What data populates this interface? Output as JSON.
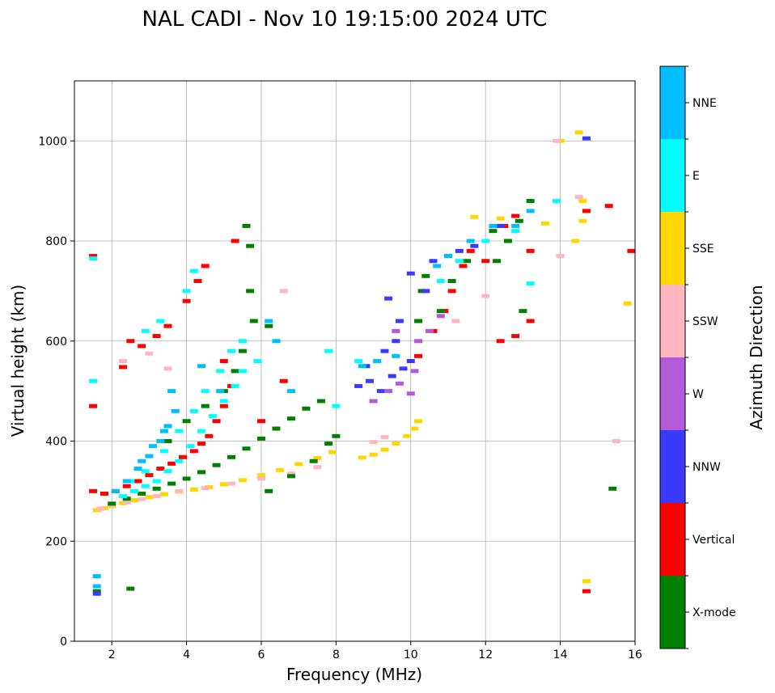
{
  "chart_data": {
    "type": "scatter",
    "title": "NAL CADI - Nov 10 19:15:00 2024 UTC",
    "xlabel": "Frequency (MHz)",
    "ylabel": "Virtual height (km)",
    "xlim": [
      1,
      16
    ],
    "ylim": [
      0,
      1120
    ],
    "xticks": [
      2,
      4,
      6,
      8,
      10,
      12,
      14,
      16
    ],
    "yticks": [
      0,
      200,
      400,
      600,
      800,
      1000
    ],
    "grid": true,
    "colorbar": {
      "label": "Azimuth Direction",
      "categories": [
        {
          "name": "X-mode",
          "color": "#008000"
        },
        {
          "name": "Vertical",
          "color": "#ff0000"
        },
        {
          "name": "NNW",
          "color": "#3a3aff"
        },
        {
          "name": "W",
          "color": "#b45ad8"
        },
        {
          "name": "SSW",
          "color": "#ffb6c1"
        },
        {
          "name": "SSE",
          "color": "#ffd700"
        },
        {
          "name": "E",
          "color": "#00ffff"
        },
        {
          "name": "NNE",
          "color": "#00bfff"
        }
      ]
    },
    "traces": [
      {
        "name": "SSE",
        "points": [
          [
            1.6,
            262
          ],
          [
            1.8,
            266
          ],
          [
            2.0,
            270
          ],
          [
            2.3,
            276
          ],
          [
            2.6,
            282
          ],
          [
            3.0,
            288
          ],
          [
            3.4,
            294
          ],
          [
            3.8,
            299
          ],
          [
            4.2,
            303
          ],
          [
            4.6,
            308
          ],
          [
            5.0,
            314
          ],
          [
            5.5,
            322
          ],
          [
            6.0,
            332
          ],
          [
            6.5,
            342
          ],
          [
            7.0,
            354
          ],
          [
            7.5,
            366
          ],
          [
            7.9,
            378
          ],
          [
            8.7,
            367
          ],
          [
            9.0,
            373
          ],
          [
            9.3,
            383
          ],
          [
            9.6,
            395
          ],
          [
            9.9,
            410
          ],
          [
            10.1,
            425
          ],
          [
            10.2,
            440
          ],
          [
            11.7,
            848
          ],
          [
            12.4,
            845
          ],
          [
            13.6,
            835
          ],
          [
            14.4,
            800
          ],
          [
            14.6,
            880
          ],
          [
            14.6,
            840
          ],
          [
            14.0,
            1000
          ],
          [
            14.5,
            1017
          ],
          [
            14.7,
            120
          ],
          [
            15.8,
            675
          ]
        ]
      },
      {
        "name": "SSW",
        "points": [
          [
            1.7,
            265
          ],
          [
            2.0,
            272
          ],
          [
            2.4,
            278
          ],
          [
            2.8,
            284
          ],
          [
            3.2,
            290
          ],
          [
            3.8,
            300
          ],
          [
            4.5,
            306
          ],
          [
            5.2,
            315
          ],
          [
            6.0,
            325
          ],
          [
            6.8,
            335
          ],
          [
            7.5,
            348
          ],
          [
            9.0,
            398
          ],
          [
            9.3,
            408
          ],
          [
            2.3,
            560
          ],
          [
            3.0,
            575
          ],
          [
            3.5,
            545
          ],
          [
            6.6,
            700
          ],
          [
            11.2,
            640
          ],
          [
            12.0,
            690
          ],
          [
            14.5,
            888
          ],
          [
            14.0,
            770
          ],
          [
            15.5,
            400
          ],
          [
            13.9,
            1000
          ]
        ]
      },
      {
        "name": "Vertical",
        "points": [
          [
            1.5,
            300
          ],
          [
            1.8,
            295
          ],
          [
            2.1,
            300
          ],
          [
            2.4,
            310
          ],
          [
            2.7,
            320
          ],
          [
            3.0,
            332
          ],
          [
            3.3,
            345
          ],
          [
            3.6,
            355
          ],
          [
            3.9,
            368
          ],
          [
            4.2,
            380
          ],
          [
            4.4,
            395
          ],
          [
            4.6,
            410
          ],
          [
            4.8,
            440
          ],
          [
            5.0,
            470
          ],
          [
            5.2,
            510
          ],
          [
            2.3,
            548
          ],
          [
            2.5,
            600
          ],
          [
            2.8,
            590
          ],
          [
            3.2,
            610
          ],
          [
            3.5,
            630
          ],
          [
            4.0,
            680
          ],
          [
            4.3,
            720
          ],
          [
            4.5,
            750
          ],
          [
            5.3,
            800
          ],
          [
            1.5,
            770
          ],
          [
            1.5,
            470
          ],
          [
            5.0,
            560
          ],
          [
            6.0,
            440
          ],
          [
            6.6,
            520
          ],
          [
            10.2,
            570
          ],
          [
            10.6,
            620
          ],
          [
            10.9,
            660
          ],
          [
            11.1,
            700
          ],
          [
            11.4,
            750
          ],
          [
            11.6,
            780
          ],
          [
            12.0,
            760
          ],
          [
            12.5,
            830
          ],
          [
            12.8,
            850
          ],
          [
            13.2,
            780
          ],
          [
            12.4,
            600
          ],
          [
            12.8,
            610
          ],
          [
            13.2,
            640
          ],
          [
            14.7,
            860
          ],
          [
            15.3,
            870
          ],
          [
            15.9,
            780
          ],
          [
            14.7,
            100
          ]
        ]
      },
      {
        "name": "X-mode",
        "points": [
          [
            2.0,
            275
          ],
          [
            2.4,
            285
          ],
          [
            2.8,
            295
          ],
          [
            3.2,
            305
          ],
          [
            3.6,
            315
          ],
          [
            4.0,
            325
          ],
          [
            4.4,
            338
          ],
          [
            4.8,
            352
          ],
          [
            5.2,
            368
          ],
          [
            5.6,
            385
          ],
          [
            6.0,
            405
          ],
          [
            6.4,
            425
          ],
          [
            6.8,
            445
          ],
          [
            7.2,
            465
          ],
          [
            7.6,
            480
          ],
          [
            3.5,
            400
          ],
          [
            4.0,
            440
          ],
          [
            4.5,
            470
          ],
          [
            5.0,
            500
          ],
          [
            5.3,
            540
          ],
          [
            5.5,
            580
          ],
          [
            5.8,
            640
          ],
          [
            5.7,
            700
          ],
          [
            5.7,
            790
          ],
          [
            5.6,
            830
          ],
          [
            6.2,
            300
          ],
          [
            6.8,
            330
          ],
          [
            7.4,
            360
          ],
          [
            7.8,
            395
          ],
          [
            8.0,
            410
          ],
          [
            6.2,
            630
          ],
          [
            10.2,
            640
          ],
          [
            10.3,
            700
          ],
          [
            10.4,
            730
          ],
          [
            10.8,
            660
          ],
          [
            11.1,
            720
          ],
          [
            11.5,
            760
          ],
          [
            12.2,
            820
          ],
          [
            12.6,
            800
          ],
          [
            12.9,
            840
          ],
          [
            13.2,
            880
          ],
          [
            13.0,
            660
          ],
          [
            12.3,
            760
          ],
          [
            15.4,
            305
          ],
          [
            2.5,
            105
          ],
          [
            1.6,
            100
          ]
        ]
      },
      {
        "name": "NNW",
        "points": [
          [
            8.6,
            510
          ],
          [
            8.9,
            520
          ],
          [
            9.2,
            500
          ],
          [
            9.5,
            530
          ],
          [
            9.8,
            545
          ],
          [
            10.0,
            560
          ],
          [
            8.8,
            550
          ],
          [
            9.3,
            580
          ],
          [
            9.6,
            600
          ],
          [
            9.7,
            640
          ],
          [
            9.4,
            685
          ],
          [
            10.0,
            735
          ],
          [
            10.4,
            700
          ],
          [
            10.6,
            760
          ],
          [
            11.0,
            770
          ],
          [
            11.3,
            780
          ],
          [
            11.7,
            790
          ],
          [
            12.4,
            830
          ],
          [
            14.7,
            1005
          ],
          [
            1.6,
            95
          ]
        ]
      },
      {
        "name": "W",
        "points": [
          [
            9.0,
            480
          ],
          [
            9.4,
            500
          ],
          [
            9.7,
            515
          ],
          [
            10.0,
            495
          ],
          [
            10.1,
            540
          ],
          [
            10.5,
            620
          ],
          [
            10.8,
            650
          ],
          [
            9.6,
            620
          ],
          [
            10.2,
            600
          ]
        ]
      },
      {
        "name": "E",
        "points": [
          [
            2.3,
            290
          ],
          [
            2.6,
            300
          ],
          [
            2.9,
            310
          ],
          [
            3.2,
            320
          ],
          [
            3.5,
            340
          ],
          [
            3.8,
            360
          ],
          [
            4.1,
            390
          ],
          [
            4.4,
            420
          ],
          [
            4.7,
            450
          ],
          [
            5.0,
            480
          ],
          [
            5.3,
            510
          ],
          [
            5.5,
            540
          ],
          [
            2.5,
            320
          ],
          [
            2.9,
            340
          ],
          [
            3.4,
            380
          ],
          [
            3.8,
            420
          ],
          [
            4.2,
            460
          ],
          [
            4.5,
            500
          ],
          [
            4.9,
            540
          ],
          [
            5.2,
            580
          ],
          [
            2.9,
            620
          ],
          [
            3.3,
            640
          ],
          [
            4.0,
            700
          ],
          [
            4.2,
            740
          ],
          [
            5.5,
            600
          ],
          [
            5.9,
            560
          ],
          [
            7.8,
            580
          ],
          [
            8.0,
            470
          ],
          [
            8.6,
            560
          ],
          [
            10.8,
            720
          ],
          [
            11.3,
            760
          ],
          [
            12.0,
            800
          ],
          [
            12.8,
            820
          ],
          [
            13.2,
            715
          ],
          [
            13.9,
            880
          ],
          [
            1.5,
            765
          ],
          [
            1.5,
            520
          ]
        ]
      },
      {
        "name": "NNE",
        "points": [
          [
            2.1,
            300
          ],
          [
            2.4,
            320
          ],
          [
            2.7,
            345
          ],
          [
            3.0,
            370
          ],
          [
            3.3,
            400
          ],
          [
            3.5,
            430
          ],
          [
            3.7,
            460
          ],
          [
            3.6,
            500
          ],
          [
            2.8,
            360
          ],
          [
            3.1,
            390
          ],
          [
            3.4,
            420
          ],
          [
            4.4,
            550
          ],
          [
            4.9,
            500
          ],
          [
            6.2,
            640
          ],
          [
            6.4,
            600
          ],
          [
            6.8,
            500
          ],
          [
            8.7,
            550
          ],
          [
            9.1,
            560
          ],
          [
            9.6,
            570
          ],
          [
            10.7,
            750
          ],
          [
            11.0,
            770
          ],
          [
            11.6,
            800
          ],
          [
            12.2,
            830
          ],
          [
            12.8,
            830
          ],
          [
            13.2,
            860
          ],
          [
            1.6,
            130
          ],
          [
            1.6,
            110
          ]
        ]
      }
    ]
  }
}
